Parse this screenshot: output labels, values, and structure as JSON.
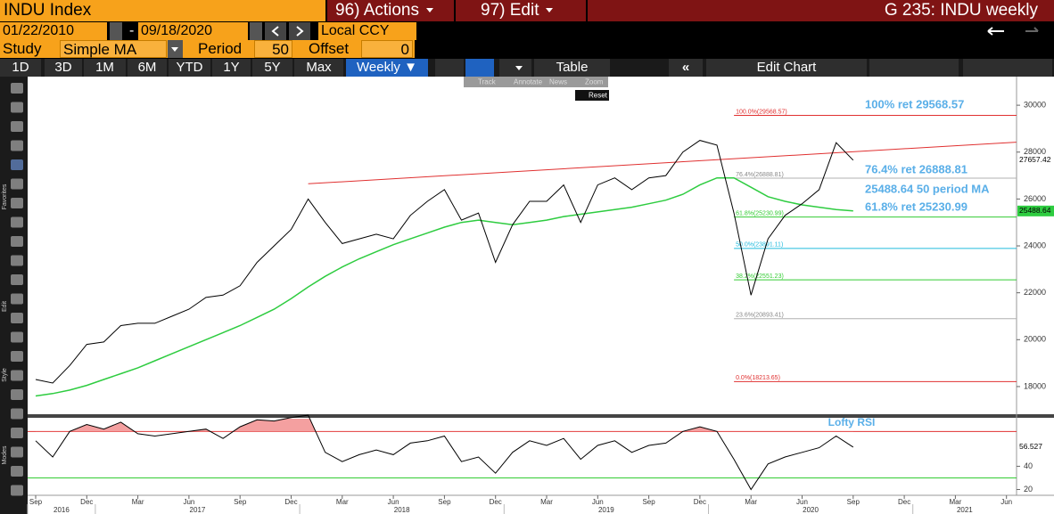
{
  "header": {
    "ticker": "INDU Index",
    "actions": "96) Actions",
    "edit": "97) Edit",
    "screen": "G 235: INDU weekly"
  },
  "toolbar": {
    "start_date": "01/22/2010",
    "dash": "-",
    "end_date": "09/18/2020",
    "currency": "Local CCY",
    "study_label": "Study",
    "study": "Simple MA",
    "period_label": "Period",
    "period": "50",
    "offset_label": "Offset",
    "offset": "0",
    "ranges": [
      "1D",
      "3D",
      "1M",
      "6M",
      "YTD",
      "1Y",
      "5Y",
      "Max"
    ],
    "frequency": "Weekly ▼",
    "table": "Table",
    "edit_chart": "Edit Chart",
    "overlay": [
      "Track",
      "Annotate",
      "News",
      "Zoom"
    ],
    "reset": "Reset",
    "side_labels": [
      "Favorites",
      "Edit",
      "Style",
      "Modes"
    ]
  },
  "chart_data": {
    "type": "line",
    "x": [
      "2016-09",
      "2016-10",
      "2016-11",
      "2016-12",
      "2017-01",
      "2017-02",
      "2017-03",
      "2017-04",
      "2017-05",
      "2017-06",
      "2017-07",
      "2017-08",
      "2017-09",
      "2017-10",
      "2017-11",
      "2017-12",
      "2018-01",
      "2018-02",
      "2018-03",
      "2018-04",
      "2018-05",
      "2018-06",
      "2018-07",
      "2018-08",
      "2018-09",
      "2018-10",
      "2018-11",
      "2018-12",
      "2019-01",
      "2019-02",
      "2019-03",
      "2019-04",
      "2019-05",
      "2019-06",
      "2019-07",
      "2019-08",
      "2019-09",
      "2019-10",
      "2019-11",
      "2019-12",
      "2020-01",
      "2020-02",
      "2020-03",
      "2020-04",
      "2020-05",
      "2020-06",
      "2020-07",
      "2020-08",
      "2020-09"
    ],
    "series": [
      {
        "color": "#000000",
        "values": [
          18300,
          18150,
          18900,
          19800,
          19900,
          20600,
          20700,
          20700,
          21000,
          21300,
          21800,
          21900,
          22300,
          23300,
          24000,
          24700,
          26000,
          25000,
          24100,
          24300,
          24500,
          24300,
          25300,
          25900,
          26400,
          25100,
          25400,
          23300,
          24900,
          25900,
          25900,
          26600,
          25000,
          26600,
          26900,
          26400,
          26900,
          27000,
          28000,
          28500,
          28300,
          25400,
          21900,
          24300,
          25300,
          25800,
          26400,
          28400,
          27657.42
        ]
      },
      {
        "color": "#2ecc40",
        "values": [
          17600,
          17700,
          17850,
          18050,
          18300,
          18550,
          18800,
          19100,
          19400,
          19700,
          20000,
          20300,
          20600,
          20950,
          21300,
          21750,
          22250,
          22700,
          23100,
          23450,
          23750,
          24050,
          24300,
          24550,
          24800,
          25000,
          25100,
          25000,
          24900,
          25000,
          25100,
          25250,
          25350,
          25450,
          25550,
          25650,
          25800,
          25950,
          26200,
          26600,
          26900,
          26900,
          26500,
          26100,
          25900,
          25750,
          25650,
          25550,
          25488.64
        ]
      }
    ],
    "ylim": [
      16820,
      31220
    ],
    "yticks": [
      18000,
      20000,
      22000,
      24000,
      26000,
      28000,
      30000
    ],
    "xticks": [
      {
        "value": "2016-09",
        "label": "Sep"
      },
      {
        "value": "2016-12",
        "label": "Dec"
      },
      {
        "value": "2017-03",
        "label": "Mar"
      },
      {
        "value": "2017-06",
        "label": "Jun"
      },
      {
        "value": "2017-09",
        "label": "Sep"
      },
      {
        "value": "2017-12",
        "label": "Dec"
      },
      {
        "value": "2018-03",
        "label": "Mar"
      },
      {
        "value": "2018-06",
        "label": "Jun"
      },
      {
        "value": "2018-09",
        "label": "Sep"
      },
      {
        "value": "2018-12",
        "label": "Dec"
      },
      {
        "value": "2019-03",
        "label": "Mar"
      },
      {
        "value": "2019-06",
        "label": "Jun"
      },
      {
        "value": "2019-09",
        "label": "Sep"
      },
      {
        "value": "2019-12",
        "label": "Dec"
      },
      {
        "value": "2020-03",
        "label": "Mar"
      },
      {
        "value": "2020-06",
        "label": "Jun"
      },
      {
        "value": "2020-09",
        "label": "Sep"
      },
      {
        "value": "2020-12",
        "label": "Dec"
      },
      {
        "value": "2021-03",
        "label": "Mar"
      },
      {
        "value": "2021-06",
        "label": "Jun"
      }
    ],
    "years": [
      2016,
      2017,
      2018,
      2019,
      2020,
      2021
    ],
    "trendline": {
      "x": [
        "2018-01",
        "2021-06"
      ],
      "values": [
        26650,
        28400
      ],
      "color": "#e03030"
    },
    "fib_start": "2020-02",
    "fib_levels": [
      {
        "value": 29568.57,
        "label": "100.0%(29568.57)",
        "color": "#e03030"
      },
      {
        "value": 26888.81,
        "label": "76.4%(26888.81)",
        "color": "#b0b0b0"
      },
      {
        "value": 25230.99,
        "label": "61.8%(25230.99)",
        "color": "#33cc33"
      },
      {
        "value": 23891.11,
        "label": "50.0%(23891.11)",
        "color": "#22bbdd"
      },
      {
        "value": 22551.23,
        "label": "38.2%(22551.23)",
        "color": "#33cc33"
      },
      {
        "value": 20893.41,
        "label": "23.6%(20893.41)",
        "color": "#b0b0b0"
      },
      {
        "value": 18213.65,
        "label": "0.0%(18213.65)",
        "color": "#e03030"
      }
    ],
    "annotations": [
      "100% ret 29568.57",
      "76.4% ret 26888.81",
      "25488.64 50 period MA",
      "61.8% ret 25230.99"
    ],
    "rsi": {
      "title": "Lofty RSI",
      "color": "#000000",
      "fill": "#f4a0a0",
      "values": [
        62,
        48,
        70,
        76,
        72,
        78,
        68,
        66,
        68,
        70,
        72,
        64,
        74,
        80,
        79,
        82,
        84,
        52,
        44,
        50,
        54,
        50,
        60,
        62,
        66,
        44,
        48,
        34,
        52,
        62,
        58,
        64,
        46,
        58,
        62,
        52,
        58,
        60,
        70,
        74,
        70,
        46,
        20,
        42,
        48,
        52,
        56,
        66,
        56.527
      ],
      "ylim": [
        15,
        81
      ],
      "yticks": [
        20,
        40
      ],
      "levels": [
        {
          "value": 70,
          "color": "#e03030"
        },
        {
          "value": 30,
          "color": "#33cc33"
        }
      ]
    }
  }
}
